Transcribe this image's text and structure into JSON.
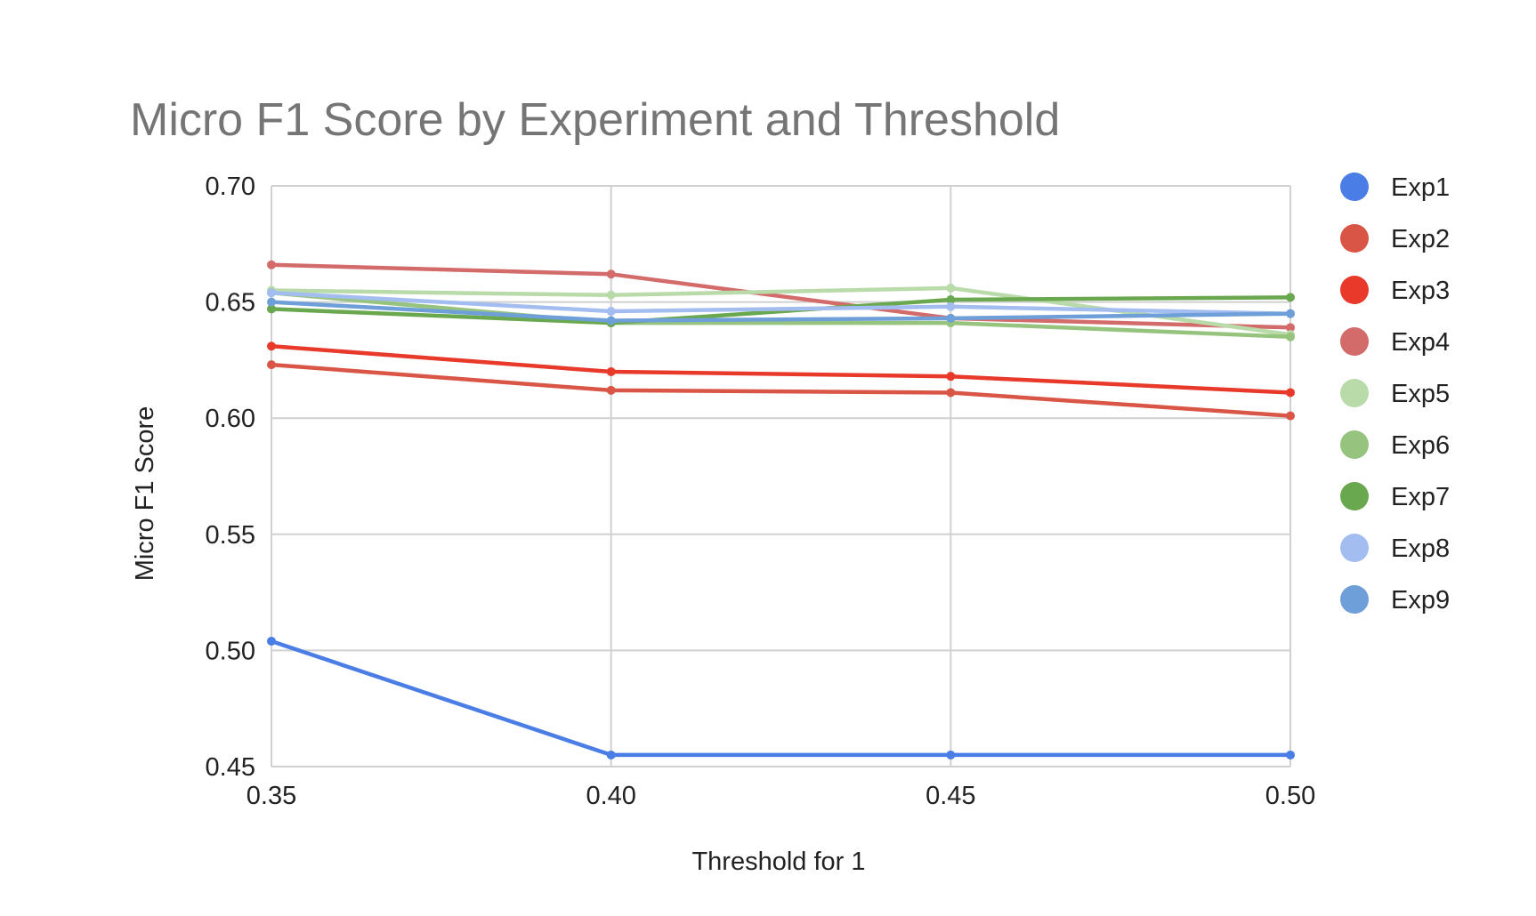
{
  "chart_data": {
    "type": "line",
    "title": "Micro F1 Score by Experiment and Threshold",
    "xlabel": "Threshold for 1",
    "ylabel": "Micro F1 Score",
    "x": [
      0.35,
      0.4,
      0.45,
      0.5
    ],
    "x_tick_labels": [
      "0.35",
      "0.40",
      "0.45",
      "0.50"
    ],
    "ylim": [
      0.45,
      0.7
    ],
    "y_ticks": [
      0.45,
      0.5,
      0.55,
      0.6,
      0.65,
      0.7
    ],
    "y_tick_labels": [
      "0.45",
      "0.50",
      "0.55",
      "0.60",
      "0.65",
      "0.70"
    ],
    "grid": true,
    "legend_position": "right",
    "series": [
      {
        "name": "Exp1",
        "color": "#4a7de6",
        "values": [
          0.504,
          0.455,
          0.455,
          0.455
        ]
      },
      {
        "name": "Exp2",
        "color": "#d95545",
        "values": [
          0.623,
          0.612,
          0.611,
          0.601
        ]
      },
      {
        "name": "Exp3",
        "color": "#e8392b",
        "values": [
          0.631,
          0.62,
          0.618,
          0.611
        ]
      },
      {
        "name": "Exp4",
        "color": "#d46b6b",
        "values": [
          0.666,
          0.662,
          0.643,
          0.639
        ]
      },
      {
        "name": "Exp5",
        "color": "#b9dbaa",
        "values": [
          0.655,
          0.653,
          0.656,
          0.636
        ]
      },
      {
        "name": "Exp6",
        "color": "#96c47e",
        "values": [
          0.654,
          0.641,
          0.641,
          0.635
        ]
      },
      {
        "name": "Exp7",
        "color": "#6aa84f",
        "values": [
          0.647,
          0.641,
          0.651,
          0.652
        ]
      },
      {
        "name": "Exp8",
        "color": "#a4bdf0",
        "values": [
          0.654,
          0.646,
          0.648,
          0.645
        ]
      },
      {
        "name": "Exp9",
        "color": "#6f9fd8",
        "values": [
          0.65,
          0.642,
          0.643,
          0.645
        ]
      }
    ]
  }
}
